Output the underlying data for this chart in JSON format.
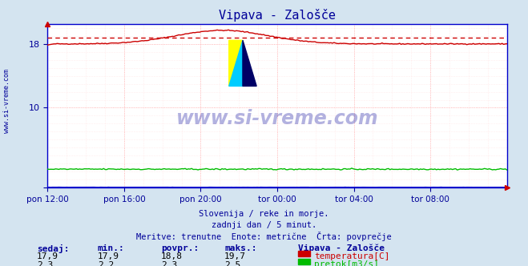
{
  "title": "Vipava - Zalošče",
  "title_color": "#000099",
  "bg_color": "#d4e4f0",
  "plot_bg_color": "#ffffff",
  "grid_color_major": "#ffaaaa",
  "grid_color_minor": "#ffdddd",
  "xlabel_color": "#000099",
  "ylabel_color": "#000099",
  "x_tick_labels": [
    "pon 12:00",
    "pon 16:00",
    "pon 20:00",
    "tor 00:00",
    "tor 04:00",
    "tor 08:00"
  ],
  "x_tick_positions": [
    0.0,
    0.1667,
    0.3333,
    0.5,
    0.6667,
    0.8333
  ],
  "ylim_min": 0,
  "ylim_max": 20.5,
  "temp_min": 17.9,
  "temp_max": 19.7,
  "temp_avg": 18.8,
  "temp_current": 17.9,
  "flow_min": 2.2,
  "flow_max": 2.5,
  "flow_avg": 2.3,
  "flow_current": 2.3,
  "temp_color": "#cc0000",
  "flow_color": "#00bb00",
  "height_color": "#0000cc",
  "avg_line_color": "#cc0000",
  "watermark": "www.si-vreme.com",
  "watermark_color": "#000099",
  "subtitle1": "Slovenija / reke in morje.",
  "subtitle2": "zadnji dan / 5 minut.",
  "subtitle3": "Meritve: trenutne  Enote: metrične  Črta: povprečje",
  "subtitle_color": "#000099",
  "legend_title": "Vipava - Zalošče",
  "legend_title_color": "#000099",
  "label_temp": "temperatura[C]",
  "label_flow": "pretok[m3/s]",
  "stat_labels": [
    "sedaj:",
    "min.:",
    "povpr.:",
    "maks.:"
  ],
  "stat_color": "#000099",
  "stat_temp": [
    17.9,
    17.9,
    18.8,
    19.7
  ],
  "stat_flow": [
    2.3,
    2.2,
    2.3,
    2.5
  ],
  "n_points": 288,
  "spine_color": "#0000cc",
  "left_label": "www.si-vreme.com"
}
